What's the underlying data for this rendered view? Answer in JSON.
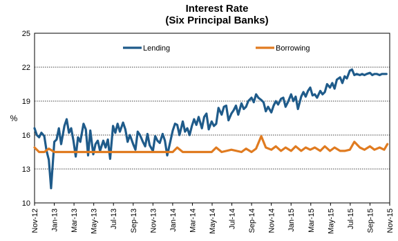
{
  "chart_data": {
    "type": "line",
    "title": "Interest Rate",
    "subtitle": "(Six Principal Banks)",
    "xlabel": "",
    "ylabel": "%",
    "ylim": [
      10,
      25
    ],
    "yticks": [
      10,
      13,
      16,
      19,
      22,
      25
    ],
    "grid": "horizontal",
    "legend_position": "top",
    "x_tick_labels": [
      "Nov-12",
      "Jan-13",
      "Mar-13",
      "May-13",
      "Jul-13",
      "Sep-13",
      "Nov-13",
      "Jan-14",
      "Mar-14",
      "May-14",
      "Jul-14",
      "Sep-14",
      "Nov-14",
      "Jan-15",
      "Mar-15",
      "May-15",
      "Jul-15",
      "Sep-15",
      "Nov-15"
    ],
    "x_start": "2012-11-01",
    "x_end": "2015-11-01",
    "colors": {
      "Lending": "#1f5b8a",
      "Borrowing": "#e07b20"
    },
    "series": [
      {
        "name": "Lending",
        "x": [
          "2012-11-01",
          "2012-11-08",
          "2012-11-15",
          "2012-11-22",
          "2012-12-01",
          "2012-12-08",
          "2012-12-15",
          "2012-12-22",
          "2013-01-01",
          "2013-01-08",
          "2013-01-15",
          "2013-01-22",
          "2013-02-01",
          "2013-02-08",
          "2013-02-15",
          "2013-02-22",
          "2013-03-01",
          "2013-03-08",
          "2013-03-15",
          "2013-03-22",
          "2013-04-01",
          "2013-04-08",
          "2013-04-15",
          "2013-04-22",
          "2013-05-01",
          "2013-05-08",
          "2013-05-15",
          "2013-05-22",
          "2013-06-01",
          "2013-06-08",
          "2013-06-15",
          "2013-06-22",
          "2013-07-01",
          "2013-07-08",
          "2013-07-15",
          "2013-07-22",
          "2013-08-01",
          "2013-08-08",
          "2013-08-15",
          "2013-08-22",
          "2013-09-01",
          "2013-09-08",
          "2013-09-15",
          "2013-09-22",
          "2013-10-01",
          "2013-10-08",
          "2013-10-15",
          "2013-10-22",
          "2013-11-01",
          "2013-11-08",
          "2013-11-15",
          "2013-11-22",
          "2013-12-01",
          "2013-12-08",
          "2013-12-15",
          "2013-12-22",
          "2014-01-01",
          "2014-01-08",
          "2014-01-15",
          "2014-01-22",
          "2014-02-01",
          "2014-02-08",
          "2014-02-15",
          "2014-02-22",
          "2014-03-01",
          "2014-03-08",
          "2014-03-15",
          "2014-03-22",
          "2014-04-01",
          "2014-04-08",
          "2014-04-15",
          "2014-04-22",
          "2014-05-01",
          "2014-05-08",
          "2014-05-15",
          "2014-05-22",
          "2014-06-01",
          "2014-06-08",
          "2014-06-15",
          "2014-06-22",
          "2014-07-01",
          "2014-07-08",
          "2014-07-15",
          "2014-07-22",
          "2014-08-01",
          "2014-08-08",
          "2014-08-15",
          "2014-08-22",
          "2014-09-01",
          "2014-09-08",
          "2014-09-15",
          "2014-09-22",
          "2014-10-01",
          "2014-10-08",
          "2014-10-15",
          "2014-10-22",
          "2014-11-01",
          "2014-11-08",
          "2014-11-15",
          "2014-11-22",
          "2014-12-01",
          "2014-12-08",
          "2014-12-15",
          "2014-12-22",
          "2015-01-01",
          "2015-01-08",
          "2015-01-15",
          "2015-01-22",
          "2015-02-01",
          "2015-02-08",
          "2015-02-15",
          "2015-02-22",
          "2015-03-01",
          "2015-03-08",
          "2015-03-15",
          "2015-03-22",
          "2015-04-01",
          "2015-04-08",
          "2015-04-15",
          "2015-04-22",
          "2015-05-01",
          "2015-05-08",
          "2015-05-15",
          "2015-05-22",
          "2015-06-01",
          "2015-06-08",
          "2015-06-15",
          "2015-06-22",
          "2015-07-01",
          "2015-07-08",
          "2015-07-15",
          "2015-07-22",
          "2015-08-01",
          "2015-08-08",
          "2015-08-15",
          "2015-08-22",
          "2015-09-01",
          "2015-09-08",
          "2015-09-15",
          "2015-09-22",
          "2015-10-01",
          "2015-10-08",
          "2015-10-15",
          "2015-10-22"
        ],
        "values": [
          16.6,
          16.0,
          15.8,
          16.2,
          15.9,
          14.6,
          13.8,
          11.3,
          15.4,
          15.6,
          16.6,
          15.2,
          16.8,
          17.4,
          16.2,
          16.6,
          15.5,
          14.1,
          15.8,
          15.4,
          17.0,
          16.5,
          14.2,
          16.4,
          14.3,
          15.2,
          15.5,
          14.6,
          15.5,
          14.9,
          15.6,
          13.9,
          16.8,
          16.2,
          17.0,
          16.3,
          17.1,
          16.5,
          15.4,
          16.0,
          15.2,
          14.7,
          16.3,
          16.0,
          15.4,
          15.0,
          16.1,
          15.1,
          14.6,
          15.9,
          15.5,
          15.3,
          16.1,
          15.5,
          14.2,
          15.1,
          16.4,
          17.0,
          16.9,
          16.0,
          17.2,
          16.3,
          16.6,
          16.0,
          16.8,
          17.4,
          16.9,
          17.6,
          16.6,
          17.6,
          17.9,
          16.5,
          17.2,
          16.8,
          17.0,
          18.4,
          17.8,
          18.5,
          18.6,
          17.3,
          17.9,
          18.2,
          18.6,
          17.8,
          18.8,
          18.3,
          18.5,
          19.0,
          19.3,
          18.9,
          19.6,
          19.3,
          19.1,
          18.9,
          18.1,
          18.5,
          18.0,
          18.6,
          19.0,
          18.7,
          19.2,
          19.3,
          18.5,
          18.9,
          19.6,
          19.0,
          19.4,
          18.3,
          19.4,
          19.8,
          19.4,
          19.9,
          20.2,
          19.5,
          19.6,
          19.3,
          19.9,
          19.6,
          19.8,
          20.5,
          20.2,
          20.6,
          20.1,
          20.9,
          21.1,
          20.6,
          21.2,
          21.0,
          21.7,
          21.8,
          21.3,
          21.4,
          21.3,
          21.4,
          21.3,
          21.4,
          21.5,
          21.3,
          21.4,
          21.4,
          21.3,
          21.4,
          21.4,
          21.4
        ]
      },
      {
        "name": "Borrowing",
        "x": [
          "2012-11-01",
          "2012-11-15",
          "2012-12-01",
          "2012-12-15",
          "2013-01-01",
          "2013-02-01",
          "2013-03-01",
          "2013-04-01",
          "2013-05-01",
          "2013-06-01",
          "2013-07-01",
          "2013-08-01",
          "2013-09-01",
          "2013-10-01",
          "2013-11-01",
          "2013-12-01",
          "2014-01-01",
          "2014-01-15",
          "2014-02-01",
          "2014-03-01",
          "2014-04-01",
          "2014-05-01",
          "2014-05-15",
          "2014-06-01",
          "2014-07-01",
          "2014-08-01",
          "2014-08-15",
          "2014-09-01",
          "2014-09-15",
          "2014-10-01",
          "2014-10-15",
          "2014-11-01",
          "2014-11-15",
          "2014-12-01",
          "2014-12-15",
          "2015-01-01",
          "2015-01-15",
          "2015-02-01",
          "2015-02-15",
          "2015-03-01",
          "2015-03-15",
          "2015-04-01",
          "2015-04-15",
          "2015-05-01",
          "2015-05-15",
          "2015-06-01",
          "2015-06-15",
          "2015-07-01",
          "2015-07-15",
          "2015-08-01",
          "2015-08-15",
          "2015-09-01",
          "2015-09-15",
          "2015-10-01",
          "2015-10-15",
          "2015-10-25"
        ],
        "values": [
          14.9,
          14.5,
          14.5,
          14.8,
          14.5,
          14.5,
          14.5,
          14.5,
          14.5,
          14.5,
          14.5,
          14.5,
          14.5,
          14.5,
          14.5,
          14.5,
          14.5,
          14.9,
          14.5,
          14.5,
          14.5,
          14.5,
          14.9,
          14.5,
          14.7,
          14.5,
          14.8,
          14.5,
          14.8,
          15.9,
          14.9,
          14.7,
          15.0,
          14.6,
          14.9,
          14.6,
          15.0,
          14.6,
          14.9,
          14.7,
          14.9,
          14.6,
          15.0,
          14.6,
          14.9,
          14.6,
          14.6,
          14.7,
          15.4,
          14.9,
          14.7,
          15.0,
          14.7,
          14.9,
          14.7,
          15.2
        ]
      }
    ]
  }
}
